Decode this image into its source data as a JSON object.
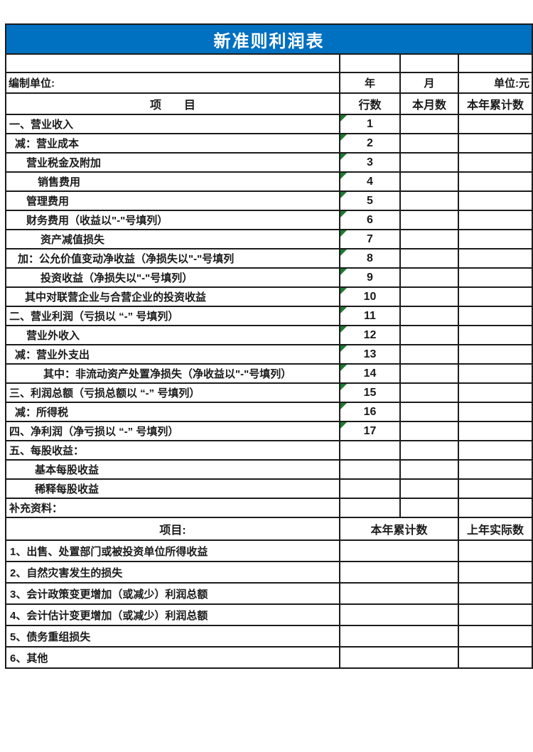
{
  "page": {
    "title": "新准则利润表"
  },
  "meta_row": {
    "prepared_by": "编制单位:",
    "year": "年",
    "month": "月",
    "unit": "单位:元"
  },
  "main_header": {
    "item": "项　　目",
    "line_no": "行数",
    "current_month": "本月数",
    "ytd": "本年累计数"
  },
  "rows": [
    {
      "label": "一、营业收入",
      "line": "1",
      "indent": 4,
      "bold": false
    },
    {
      "label": "减：营业成本",
      "line": "2",
      "indent": 12,
      "bold": false
    },
    {
      "label": "营业税金及附加",
      "line": "3",
      "indent": 28,
      "bold": false
    },
    {
      "label": "销售费用",
      "line": "4",
      "indent": 44,
      "bold": false
    },
    {
      "label": "管理费用",
      "line": "5",
      "indent": 28,
      "bold": false
    },
    {
      "label": "财务费用（收益以\"-\"号填列）",
      "line": "6",
      "indent": 28,
      "bold": false
    },
    {
      "label": "资产减值损失",
      "line": "7",
      "indent": 48,
      "bold": false
    },
    {
      "label": "加：公允价值变动净收益（净损失以\"-\"号填列",
      "line": "8",
      "indent": 16,
      "bold": false
    },
    {
      "label": "投资收益（净损失以\"-\"号填列）",
      "line": "9",
      "indent": 48,
      "bold": false
    },
    {
      "label": "其中对联营企业与合营企业的投资收益",
      "line": "10",
      "indent": 26,
      "bold": false
    },
    {
      "label": "二、营业利润（亏损以 “-” 号填列）",
      "line": "11",
      "indent": 4,
      "bold": false
    },
    {
      "label": "营业外收入",
      "line": "12",
      "indent": 28,
      "bold": false
    },
    {
      "label": "减：营业外支出",
      "line": "13",
      "indent": 12,
      "bold": false
    },
    {
      "label": "其中：非流动资产处置净损失（净收益以\"-\"号填列）",
      "line": "14",
      "indent": 52,
      "bold": false
    },
    {
      "label": "三、利润总额（亏损总额以 “-” 号填列）",
      "line": "15",
      "indent": 4,
      "bold": false
    },
    {
      "label": "减：所得税",
      "line": "16",
      "indent": 12,
      "bold": false
    },
    {
      "label": "四、净利润（净亏损以 “-” 号填列）",
      "line": "17",
      "indent": 4,
      "bold": false
    },
    {
      "label": "五、每股收益：",
      "line": "",
      "indent": 4,
      "bold": false
    },
    {
      "label": "基本每股收益",
      "line": "",
      "indent": 40,
      "bold": false
    },
    {
      "label": "稀释每股收益",
      "line": "",
      "indent": 40,
      "bold": false
    },
    {
      "label": "补充资料：",
      "line": "",
      "indent": 4,
      "bold": true
    }
  ],
  "supplement": {
    "header": {
      "item": "项目:",
      "ytd": "本年累计数",
      "prior_year": "上年实际数"
    },
    "rows": [
      {
        "label": "1、出售、处置部门或被投资单位所得收益"
      },
      {
        "label": "2、自然灾害发生的损失"
      },
      {
        "label": "3、会计政策变更增加（或减少）利润总额"
      },
      {
        "label": "4、会计估计变更增加（或减少）利润总额"
      },
      {
        "label": "5、债务重组损失"
      },
      {
        "label": "6、其他"
      }
    ]
  },
  "colors": {
    "banner_blue": "#0070C0",
    "triangle_green": "#1E7A33",
    "border": "#1C1C1C"
  }
}
